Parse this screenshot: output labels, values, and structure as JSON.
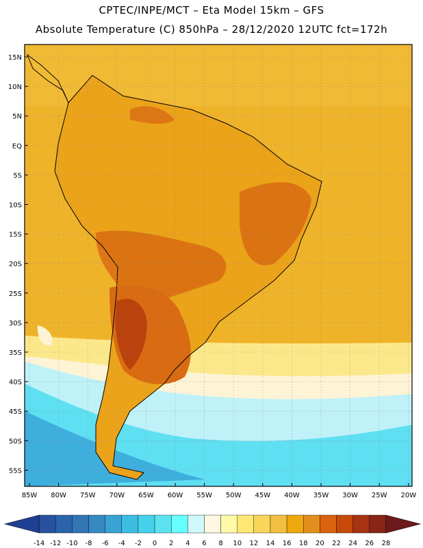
{
  "header": {
    "line1": "CPTEC/INPE/MCT –  Eta Model 15km – GFS",
    "line2": "Absolute Temperature (C) 850hPa – 28/12/2020 12UTC fct=172h"
  },
  "axes": {
    "lat_labels": [
      "15N",
      "10N",
      "5N",
      "EQ",
      "5S",
      "10S",
      "15S",
      "20S",
      "25S",
      "30S",
      "35S",
      "40S",
      "45S",
      "50S",
      "55S"
    ],
    "lon_labels": [
      "85W",
      "80W",
      "75W",
      "70W",
      "65W",
      "60W",
      "55W",
      "50W",
      "45W",
      "40W",
      "35W",
      "30W",
      "25W",
      "20W"
    ]
  },
  "colorbar": {
    "values": [
      "-14",
      "-12",
      "-10",
      "-8",
      "-6",
      "-4",
      "-2",
      "0",
      "2",
      "4",
      "6",
      "8",
      "10",
      "12",
      "14",
      "16",
      "18",
      "20",
      "22",
      "24",
      "26",
      "28"
    ],
    "colors": [
      "#1f3f94",
      "#26529f",
      "#2c64ab",
      "#3276b6",
      "#3689c3",
      "#3aa3d3",
      "#3dbde2",
      "#43d2ea",
      "#5ae3ef",
      "#66fdfd",
      "#cff8fb",
      "#fff7e3",
      "#fff9a8",
      "#fde873",
      "#f9d65a",
      "#f3bf41",
      "#eda90e",
      "#e38e1c",
      "#d9630f",
      "#c74909",
      "#a63312",
      "#872517",
      "#6e1a1d"
    ]
  },
  "map_colors": {
    "ocean_warm": "#efb32a",
    "land_base": "#eba31a",
    "hot": "#d96b12",
    "very_hot": "#b9420d",
    "pale": "#fdf4d6",
    "yellow": "#fbe88a",
    "light_cyan": "#bff1f8",
    "cyan": "#5fdff2",
    "blue": "#3eaedd"
  }
}
